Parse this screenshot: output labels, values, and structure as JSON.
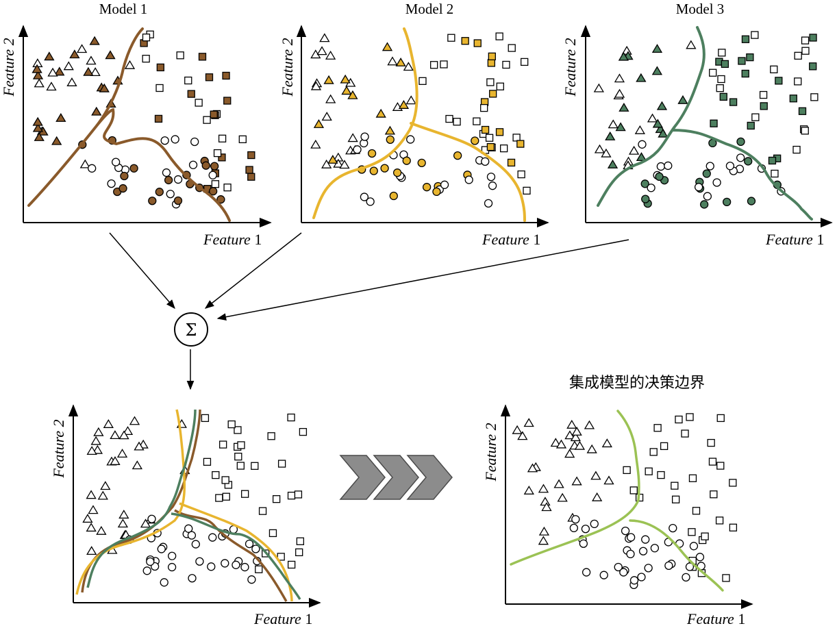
{
  "colors": {
    "model1": "#8a5a2b",
    "model2": "#e8b52f",
    "model3": "#4d7f5f",
    "ensemble": "#9bc254",
    "arrow_fill": "#8c8c8c",
    "arrow_stroke": "#4a4a4a"
  },
  "titles": {
    "model1": "Model 1",
    "model2": "Model 2",
    "model3": "Model 3"
  },
  "axes": {
    "x_label": "Feature",
    "x_label_suffix": " 1",
    "y_label": "Feature 2"
  },
  "combiner": {
    "symbol": "Σ"
  },
  "caption": "集成模型的决策边界",
  "icons": {
    "triangle": "triangle-marker",
    "square": "square-marker",
    "circle": "circle-marker",
    "chevron": "chevron-arrow-icon"
  }
}
